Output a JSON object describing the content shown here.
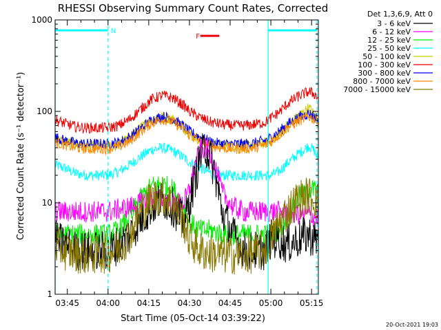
{
  "chart_data": {
    "type": "line",
    "title": "RHESSI Observing Summary Count Rates, Corrected",
    "xlabel": "Start Time (05-Oct-14 03:39:22)",
    "ylabel": "Corrected Count Rate (s⁻¹ detector⁻¹)",
    "y_scale": "log",
    "ylim": [
      1,
      1000
    ],
    "y_ticks": [
      {
        "value": 1,
        "label": "1"
      },
      {
        "value": 10,
        "label": "10"
      },
      {
        "value": 100,
        "label": "100"
      },
      {
        "value": 1000,
        "label": "1000"
      }
    ],
    "x_unit": "minutes after 03:30",
    "xlim": [
      10.5,
      107.5
    ],
    "x_ticks": [
      {
        "value": 15,
        "label": "03:45"
      },
      {
        "value": 30,
        "label": "04:00"
      },
      {
        "value": 45,
        "label": "04:15"
      },
      {
        "value": 60,
        "label": "04:30"
      },
      {
        "value": 75,
        "label": "04:45"
      },
      {
        "value": 90,
        "label": "05:00"
      },
      {
        "value": 105,
        "label": "05:15"
      }
    ],
    "legend_header": "Det 1,3,6,9, Att 0",
    "legend_position": "outside-right",
    "series": [
      {
        "name": "3 - 6 keV",
        "color": "#000000",
        "x": [
          10.5,
          14,
          18,
          22,
          26,
          30,
          34,
          38,
          42,
          46,
          50,
          54,
          58,
          60,
          62,
          64,
          66,
          68,
          70,
          72,
          76,
          80,
          84,
          88,
          90,
          93,
          96,
          100,
          104,
          106,
          107.5
        ],
        "values": [
          4,
          3.5,
          3,
          3,
          3,
          3,
          3.5,
          4.5,
          6.5,
          9,
          11,
          9,
          6,
          10,
          18,
          32,
          40,
          30,
          17,
          8,
          4.5,
          3,
          3,
          3,
          4,
          4,
          3.5,
          4,
          4.5,
          4,
          4
        ]
      },
      {
        "name": "6 - 12 keV",
        "color": "#ff00ff",
        "x": [
          10.5,
          14,
          18,
          22,
          26,
          30,
          34,
          38,
          42,
          46,
          50,
          54,
          58,
          60,
          62,
          64,
          66,
          68,
          70,
          72,
          76,
          80,
          84,
          88,
          90,
          93,
          96,
          100,
          104,
          106,
          107.5
        ],
        "values": [
          8,
          8,
          8,
          8,
          8,
          8,
          8.5,
          9,
          10,
          11,
          11,
          10,
          10,
          14,
          25,
          38,
          40,
          33,
          22,
          13,
          9,
          8,
          8,
          8,
          8,
          8,
          8,
          7.5,
          7.5,
          7,
          7
        ]
      },
      {
        "name": "12 - 25 keV",
        "color": "#00ee00",
        "x": [
          10.5,
          14,
          18,
          22,
          26,
          30,
          34,
          38,
          42,
          46,
          50,
          54,
          58,
          60,
          64,
          68,
          72,
          76,
          80,
          84,
          88,
          90,
          93,
          96,
          100,
          104,
          106,
          107.5
        ],
        "values": [
          4.5,
          4.5,
          4.5,
          4.5,
          4.5,
          4.5,
          5,
          7,
          11,
          15,
          16,
          14,
          9,
          6,
          5,
          5,
          4.5,
          4.5,
          4.5,
          4.5,
          4.5,
          4.5,
          5,
          7,
          11,
          14,
          14,
          13
        ]
      },
      {
        "name": "25 - 50 keV",
        "color": "#00ffff",
        "x": [
          10.5,
          14,
          18,
          22,
          26,
          30,
          34,
          38,
          42,
          46,
          50,
          54,
          58,
          60,
          64,
          68,
          72,
          76,
          80,
          84,
          88,
          90,
          93,
          96,
          100,
          104,
          106,
          107.5
        ],
        "values": [
          26,
          24,
          21,
          20,
          20,
          20,
          22,
          26,
          32,
          38,
          40,
          37,
          31,
          28,
          24,
          21,
          20,
          20,
          20,
          20,
          20,
          20,
          22,
          27,
          34,
          42,
          37,
          30
        ]
      },
      {
        "name": "50 - 100 keV",
        "color": "#cccc00",
        "x": [
          10.5,
          14,
          18,
          22,
          26,
          30,
          34,
          38,
          42,
          46,
          50,
          54,
          58,
          60,
          64,
          68,
          72,
          76,
          80,
          84,
          88,
          90,
          93,
          96,
          100,
          104,
          106,
          107.5
        ],
        "values": [
          50,
          47,
          43,
          42,
          42,
          42,
          44,
          52,
          66,
          82,
          88,
          82,
          65,
          58,
          48,
          43,
          42,
          42,
          42,
          43,
          45,
          47,
          55,
          70,
          88,
          110,
          92,
          80
        ]
      },
      {
        "name": "100 - 300 keV",
        "color": "#ee0000",
        "x": [
          10.5,
          14,
          18,
          22,
          26,
          30,
          34,
          38,
          42,
          46,
          50,
          54,
          58,
          60,
          64,
          68,
          72,
          76,
          80,
          84,
          88,
          90,
          93,
          96,
          100,
          104,
          106,
          107.5
        ],
        "values": [
          80,
          74,
          68,
          66,
          66,
          66,
          70,
          82,
          105,
          135,
          150,
          140,
          115,
          100,
          85,
          76,
          72,
          70,
          70,
          72,
          76,
          84,
          98,
          120,
          145,
          165,
          155,
          140
        ]
      },
      {
        "name": "300 - 800 keV",
        "color": "#0000ee",
        "x": [
          10.5,
          14,
          18,
          22,
          26,
          30,
          34,
          38,
          42,
          46,
          50,
          54,
          58,
          60,
          64,
          68,
          72,
          76,
          80,
          84,
          88,
          90,
          93,
          96,
          100,
          104,
          106,
          107.5
        ],
        "values": [
          52,
          48,
          45,
          44,
          44,
          44,
          46,
          52,
          65,
          80,
          88,
          82,
          68,
          60,
          52,
          46,
          44,
          44,
          44,
          45,
          48,
          52,
          60,
          72,
          85,
          95,
          88,
          80
        ]
      },
      {
        "name": "800 - 7000 keV",
        "color": "#ff8800",
        "x": [
          10.5,
          14,
          18,
          22,
          26,
          30,
          34,
          38,
          42,
          46,
          50,
          54,
          58,
          60,
          64,
          68,
          72,
          76,
          80,
          84,
          88,
          90,
          93,
          96,
          100,
          104,
          106,
          107.5
        ],
        "values": [
          46,
          43,
          40,
          39,
          39,
          39,
          41,
          47,
          60,
          75,
          82,
          77,
          63,
          55,
          47,
          42,
          40,
          39,
          39,
          40,
          43,
          47,
          55,
          66,
          78,
          88,
          82,
          75
        ]
      },
      {
        "name": "7000 - 15000 keV",
        "color": "#887700",
        "x": [
          10.5,
          14,
          18,
          22,
          26,
          30,
          34,
          38,
          42,
          46,
          50,
          54,
          58,
          60,
          64,
          68,
          72,
          76,
          80,
          84,
          88,
          90,
          93,
          96,
          100,
          104,
          106,
          107.5
        ],
        "values": [
          3.5,
          3,
          2.8,
          2.7,
          2.7,
          2.8,
          3.2,
          4.5,
          8,
          11,
          12,
          10,
          6,
          4,
          3,
          2.8,
          2.7,
          2.7,
          2.7,
          2.8,
          3.2,
          4,
          6,
          8,
          11,
          12,
          11,
          10
        ]
      }
    ],
    "annotations": [
      {
        "label": "N",
        "color": "#00ffff",
        "bar": [
          10.5,
          30
        ],
        "y": 770
      },
      {
        "label": "F",
        "color": "#ee0000",
        "bar": [
          64,
          71
        ],
        "y": 670
      },
      {
        "label": "",
        "color": "#00ffff",
        "bar": [
          89,
          107
        ],
        "y": 770
      }
    ],
    "vlines": [
      {
        "x": 10.5,
        "style": "solid",
        "color": "#00ffff"
      },
      {
        "x": 30,
        "style": "dashed",
        "color": "#00ffff"
      },
      {
        "x": 89,
        "style": "solid",
        "color": "#00ffff"
      },
      {
        "x": 107,
        "style": "dashed",
        "color": "#00ffff"
      }
    ],
    "footer_timestamp": "20-Oct-2021 19:03"
  }
}
